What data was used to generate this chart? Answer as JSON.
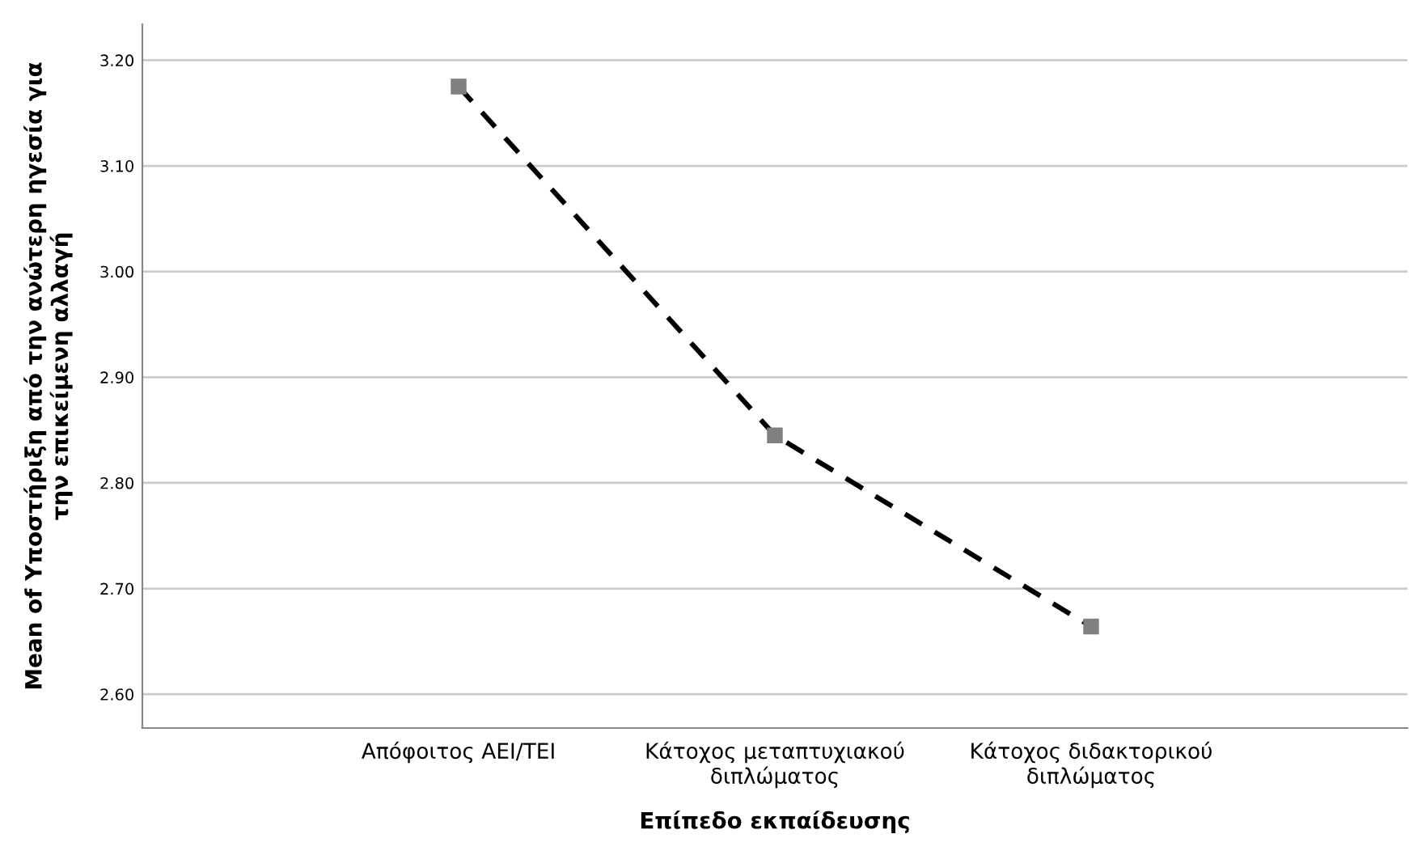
{
  "chart_data": {
    "type": "line",
    "xlabel": "Επίπεδο εκπαίδευσης",
    "ylabel": "Mean of Υποστήριξη από την ανώτερη ηγεσία για\nτην επικείμενη αλλαγή",
    "categories": [
      "Απόφοιτος ΑΕΙ/ΤΕΙ",
      "Κάτοχος μεταπτυχιακού\nδιπλώματος",
      "Κάτοχος διδακτορικού\nδιπλώματος"
    ],
    "series": [
      {
        "color": "#000000",
        "values": [
          3.175,
          2.845,
          2.664
        ]
      }
    ],
    "ylim": [
      2.568,
      3.234
    ],
    "yticks": [
      {
        "value": 2.6,
        "label": "2.60"
      },
      {
        "value": 2.7,
        "label": "2.70"
      },
      {
        "value": 2.8,
        "label": "2.80"
      },
      {
        "value": 2.9,
        "label": "2.90"
      },
      {
        "value": 3.0,
        "label": "3.00"
      },
      {
        "value": 3.1,
        "label": "3.10"
      },
      {
        "value": 3.2,
        "label": "3.20"
      }
    ],
    "grid": "y",
    "marker": "square",
    "line_style": "dashed"
  }
}
